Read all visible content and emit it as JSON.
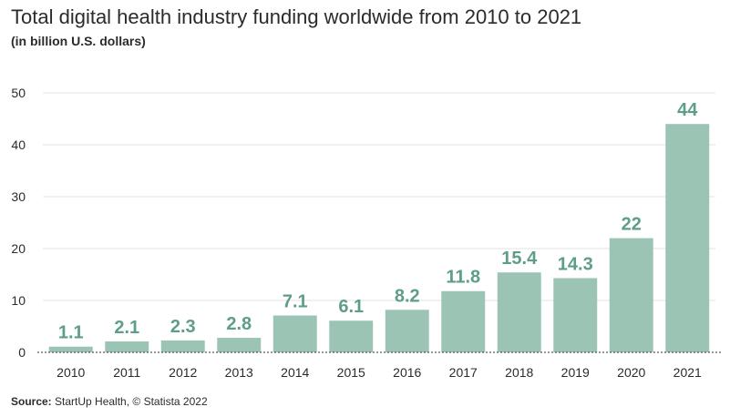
{
  "chart_data": {
    "type": "bar",
    "title": "Total digital health industry funding worldwide from 2010 to 2021",
    "subtitle": "(in billion U.S. dollars)",
    "categories": [
      "2010",
      "2011",
      "2012",
      "2013",
      "2014",
      "2015",
      "2016",
      "2017",
      "2018",
      "2019",
      "2020",
      "2021"
    ],
    "values": [
      1.1,
      2.1,
      2.3,
      2.8,
      7.1,
      6.1,
      8.2,
      11.8,
      15.4,
      14.3,
      22,
      44
    ],
    "data_labels": [
      "1.1",
      "2.1",
      "2.3",
      "2.8",
      "7.1",
      "6.1",
      "8.2",
      "11.8",
      "15.4",
      "14.3",
      "22",
      "44"
    ],
    "yticks": [
      0,
      10,
      20,
      30,
      40,
      50
    ],
    "ylim": [
      0,
      50
    ],
    "xlabel": "",
    "ylabel": "",
    "grid": true,
    "bar_color": "#9bc4b5",
    "label_color": "#5e9e87"
  },
  "source": {
    "label": "Source:",
    "text": "StartUp Health, © Statista 2022"
  }
}
